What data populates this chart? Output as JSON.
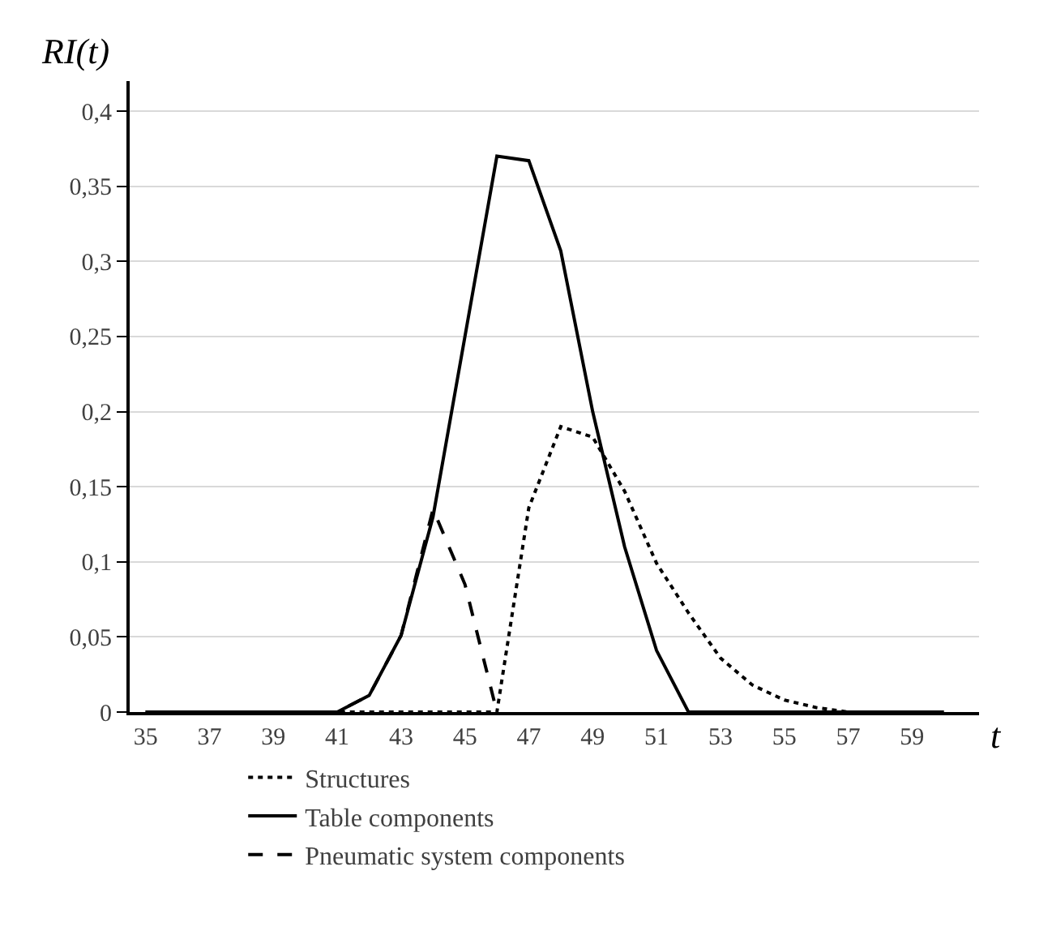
{
  "chart_data": {
    "type": "line",
    "xlabel": "t",
    "ylabel": "RI(t)",
    "categories": [
      "35",
      null,
      "37",
      null,
      "39",
      null,
      "41",
      null,
      "43",
      null,
      "45",
      null,
      "47",
      null,
      "49",
      null,
      "51",
      null,
      "53",
      null,
      "55",
      null,
      "57",
      null,
      "59",
      null
    ],
    "ylim": [
      0,
      0.42
    ],
    "yticks": [
      {
        "value": 0,
        "label": "0"
      },
      {
        "value": 0.05,
        "label": "0,05"
      },
      {
        "value": 0.1,
        "label": "0,1"
      },
      {
        "value": 0.15,
        "label": "0,15"
      },
      {
        "value": 0.2,
        "label": "0,2"
      },
      {
        "value": 0.25,
        "label": "0,25"
      },
      {
        "value": 0.3,
        "label": "0,3"
      },
      {
        "value": 0.35,
        "label": "0,35"
      },
      {
        "value": 0.4,
        "label": "0,4"
      }
    ],
    "grid": "y",
    "legend": "bottom left",
    "marker": "none",
    "series": [
      {
        "name": "Structures",
        "color": "#000000",
        "line_style": "dotted",
        "values": [
          0,
          0,
          0,
          0,
          0,
          0,
          0,
          0,
          0,
          0,
          0,
          0,
          0.136,
          0.19,
          0.183,
          0.147,
          0.099,
          0.066,
          0.036,
          0.018,
          0.008,
          0.003,
          0,
          0,
          0,
          0
        ]
      },
      {
        "name": "Table components",
        "color": "#000000",
        "line_style": "solid",
        "values": [
          0,
          0,
          0,
          0,
          0,
          0,
          0,
          0.011,
          0.051,
          0.13,
          0.25,
          0.37,
          0.367,
          0.307,
          0.2,
          0.11,
          0.041,
          0,
          0,
          0,
          0,
          0,
          0,
          0,
          0,
          0
        ]
      },
      {
        "name": "Pneumatic system components",
        "color": "#000000",
        "line_style": "dashed",
        "values": [
          0,
          0,
          0,
          0,
          0,
          0,
          0,
          0.011,
          0.051,
          0.135,
          0.085,
          0,
          null,
          null,
          null,
          null,
          null,
          null,
          null,
          null,
          null,
          null,
          null,
          null,
          null,
          null
        ]
      }
    ]
  }
}
